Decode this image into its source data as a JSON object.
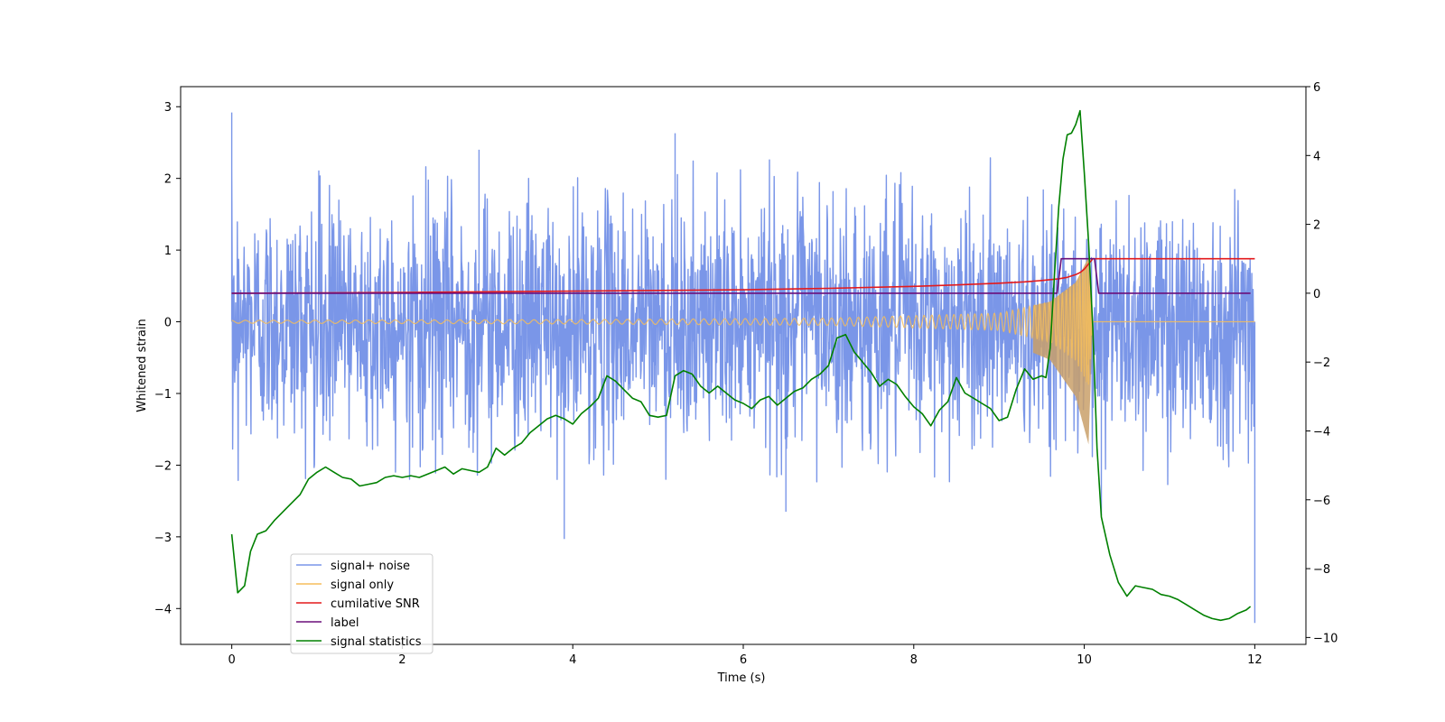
{
  "chart_data": {
    "type": "line",
    "title": "",
    "xlabel": "Time (s)",
    "ylabel": "Whitened strain",
    "ylabel_right": "",
    "xlim": [
      -0.6,
      12.6
    ],
    "ylim_left": [
      -4.5,
      3.28
    ],
    "ylim_right": [
      -10.2,
      6.0
    ],
    "xticks": [
      0,
      2,
      4,
      6,
      8,
      10,
      12
    ],
    "xtick_labels": [
      "0",
      "2",
      "4",
      "6",
      "8",
      "10",
      "12"
    ],
    "yticks_left": [
      3,
      2,
      1,
      0,
      -1,
      -2,
      -3,
      -4
    ],
    "ytick_labels_left": [
      "3",
      "2",
      "1",
      "0",
      "−1",
      "−2",
      "−3",
      "−4"
    ],
    "yticks_right": [
      6,
      4,
      2,
      0,
      -2,
      -4,
      -6,
      -8,
      -10
    ],
    "ytick_labels_right": [
      "6",
      "4",
      "2",
      "0",
      "−2",
      "−4",
      "−6",
      "−8",
      "−10"
    ],
    "grid": false,
    "legend_position": "lower-left",
    "series": [
      {
        "name": "signal+ noise",
        "axis": "left",
        "color": "#7a96e8",
        "description_kind": "noise",
        "x_range": [
          0,
          12
        ],
        "sample_count": 2400,
        "std": 0.85,
        "typical_range": [
          -2.3,
          2.3
        ],
        "peak_points": [
          [
            0.0,
            2.92
          ],
          [
            0.0,
            2.6
          ],
          [
            2.9,
            2.4
          ],
          [
            5.2,
            2.63
          ],
          [
            3.9,
            -3.03
          ],
          [
            6.5,
            -2.65
          ],
          [
            12.0,
            -4.2
          ],
          [
            10.2,
            -2.7
          ]
        ]
      },
      {
        "name": "signal only",
        "axis": "left",
        "color": "#f5bd5c",
        "description_kind": "chirp",
        "x_range": [
          0,
          12
        ],
        "merger_time": 10.1,
        "peak_amplitude": 0.9,
        "frequency_start_hz": 6,
        "amplitude_envelope": [
          [
            0,
            0.02
          ],
          [
            4,
            0.03
          ],
          [
            7,
            0.05
          ],
          [
            9,
            0.12
          ],
          [
            9.6,
            0.28
          ],
          [
            9.9,
            0.55
          ],
          [
            10.05,
            0.9
          ],
          [
            10.1,
            0.0
          ],
          [
            12,
            0.0
          ]
        ]
      },
      {
        "name": "cumilative SNR",
        "axis": "right",
        "color": "#e41a1c",
        "x": [
          0,
          2,
          4,
          6,
          7,
          8,
          8.5,
          9,
          9.3,
          9.5,
          9.7,
          9.8,
          9.9,
          9.95,
          10.0,
          10.05,
          10.1,
          10.5,
          11,
          12
        ],
        "y": [
          0.0,
          0.02,
          0.06,
          0.1,
          0.14,
          0.2,
          0.24,
          0.29,
          0.33,
          0.37,
          0.42,
          0.46,
          0.54,
          0.6,
          0.7,
          0.85,
          1.0,
          1.0,
          1.0,
          1.0
        ]
      },
      {
        "name": "label",
        "axis": "right",
        "color": "#6a0f7a",
        "x": [
          0,
          9.68,
          9.73,
          10.12,
          10.17,
          11.95
        ],
        "y": [
          0,
          0,
          1,
          1,
          0,
          0
        ]
      },
      {
        "name": "signal statistics",
        "axis": "right",
        "color": "#008000",
        "x": [
          0.0,
          0.07,
          0.15,
          0.22,
          0.3,
          0.4,
          0.5,
          0.6,
          0.7,
          0.8,
          0.9,
          1.0,
          1.1,
          1.2,
          1.3,
          1.4,
          1.5,
          1.6,
          1.7,
          1.8,
          1.9,
          2.0,
          2.1,
          2.2,
          2.3,
          2.4,
          2.5,
          2.6,
          2.7,
          2.8,
          2.9,
          3.0,
          3.1,
          3.2,
          3.3,
          3.4,
          3.5,
          3.6,
          3.7,
          3.8,
          3.9,
          4.0,
          4.1,
          4.2,
          4.3,
          4.4,
          4.5,
          4.6,
          4.7,
          4.8,
          4.9,
          5.0,
          5.1,
          5.2,
          5.3,
          5.4,
          5.5,
          5.6,
          5.7,
          5.8,
          5.9,
          6.0,
          6.1,
          6.2,
          6.3,
          6.4,
          6.5,
          6.6,
          6.7,
          6.8,
          6.9,
          7.0,
          7.1,
          7.2,
          7.3,
          7.4,
          7.5,
          7.6,
          7.7,
          7.8,
          7.9,
          8.0,
          8.1,
          8.2,
          8.3,
          8.4,
          8.5,
          8.6,
          8.7,
          8.8,
          8.9,
          9.0,
          9.1,
          9.2,
          9.3,
          9.4,
          9.5,
          9.55,
          9.6,
          9.65,
          9.7,
          9.75,
          9.8,
          9.85,
          9.9,
          9.95,
          10.0,
          10.05,
          10.1,
          10.15,
          10.2,
          10.3,
          10.4,
          10.5,
          10.6,
          10.7,
          10.8,
          10.9,
          11.0,
          11.1,
          11.2,
          11.3,
          11.4,
          11.5,
          11.6,
          11.7,
          11.8,
          11.9,
          11.95
        ],
        "y": [
          -7.0,
          -8.7,
          -8.5,
          -7.5,
          -7.0,
          -6.9,
          -6.6,
          -6.35,
          -6.1,
          -5.85,
          -5.4,
          -5.2,
          -5.05,
          -5.2,
          -5.35,
          -5.4,
          -5.6,
          -5.55,
          -5.5,
          -5.35,
          -5.3,
          -5.35,
          -5.3,
          -5.35,
          -5.25,
          -5.15,
          -5.05,
          -5.25,
          -5.1,
          -5.15,
          -5.2,
          -5.05,
          -4.5,
          -4.7,
          -4.5,
          -4.35,
          -4.05,
          -3.85,
          -3.65,
          -3.55,
          -3.65,
          -3.8,
          -3.5,
          -3.3,
          -3.05,
          -2.4,
          -2.55,
          -2.8,
          -3.05,
          -3.15,
          -3.55,
          -3.6,
          -3.55,
          -2.4,
          -2.25,
          -2.35,
          -2.7,
          -2.9,
          -2.7,
          -2.9,
          -3.1,
          -3.2,
          -3.35,
          -3.1,
          -3.0,
          -3.25,
          -3.05,
          -2.85,
          -2.75,
          -2.5,
          -2.35,
          -2.1,
          -1.3,
          -1.2,
          -1.7,
          -2.0,
          -2.3,
          -2.7,
          -2.5,
          -2.65,
          -3.0,
          -3.3,
          -3.5,
          -3.85,
          -3.4,
          -3.15,
          -2.45,
          -2.9,
          -3.05,
          -3.2,
          -3.35,
          -3.7,
          -3.6,
          -2.8,
          -2.2,
          -2.5,
          -2.4,
          -2.45,
          -1.6,
          0.5,
          2.5,
          3.9,
          4.6,
          4.65,
          4.9,
          5.3,
          3.5,
          1.5,
          -1.0,
          -4.5,
          -6.5,
          -7.6,
          -8.4,
          -8.8,
          -8.5,
          -8.55,
          -8.6,
          -8.75,
          -8.8,
          -8.9,
          -9.05,
          -9.2,
          -9.35,
          -9.45,
          -9.5,
          -9.45,
          -9.3,
          -9.2,
          -9.1
        ]
      }
    ]
  }
}
